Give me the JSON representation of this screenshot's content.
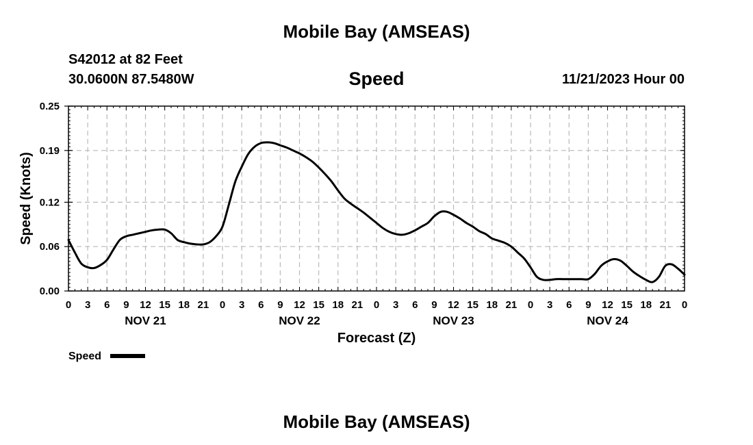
{
  "header": {
    "title": "Mobile Bay (AMSEAS)",
    "station": "S42012 at 82 Feet",
    "coordinates": "30.0600N  87.5480W",
    "datetime": "11/21/2023 Hour 00"
  },
  "footer": {
    "title": "Mobile Bay (AMSEAS)"
  },
  "chart_data": {
    "type": "line",
    "title": "Speed",
    "xlabel": "Forecast (Z)",
    "ylabel": "Speed (Knots)",
    "x_tick_labels": [
      "0",
      "3",
      "6",
      "9",
      "12",
      "15",
      "18",
      "21",
      "0",
      "3",
      "6",
      "9",
      "12",
      "15",
      "18",
      "21",
      "0",
      "3",
      "6",
      "9",
      "12",
      "15",
      "18",
      "21",
      "0",
      "3",
      "6",
      "9",
      "12",
      "15",
      "18",
      "21",
      "0"
    ],
    "x_day_labels": [
      "NOV 21",
      "NOV 22",
      "NOV 23",
      "NOV 24"
    ],
    "x_range_hours": [
      0,
      96
    ],
    "ylim": [
      0,
      0.25
    ],
    "y_ticks": [
      0.0,
      0.06,
      0.12,
      0.19,
      0.25
    ],
    "y_tick_labels": [
      "0.00",
      "0.06",
      "0.12",
      "0.19",
      "0.25"
    ],
    "grid": true,
    "legend": "bottom-left",
    "series": [
      {
        "name": "Speed",
        "color": "#000000",
        "x_hours": [
          0,
          1,
          2,
          3,
          4,
          5,
          6,
          7,
          8,
          9,
          10,
          11,
          12,
          13,
          14,
          15,
          16,
          17,
          18,
          19,
          20,
          21,
          22,
          23,
          24,
          25,
          26,
          27,
          28,
          29,
          30,
          31,
          32,
          33,
          34,
          35,
          36,
          37,
          38,
          39,
          40,
          41,
          42,
          43,
          44,
          45,
          46,
          47,
          48,
          49,
          50,
          51,
          52,
          53,
          54,
          55,
          56,
          57,
          58,
          59,
          60,
          61,
          62,
          63,
          64,
          65,
          66,
          67,
          68,
          69,
          70,
          71,
          72,
          73,
          74,
          75,
          76,
          77,
          78,
          79,
          80,
          81,
          82,
          83,
          84,
          85,
          86,
          87,
          88,
          89,
          90,
          91,
          92,
          93,
          94,
          95,
          96
        ],
        "values": [
          0.069,
          0.052,
          0.037,
          0.032,
          0.031,
          0.035,
          0.042,
          0.056,
          0.069,
          0.074,
          0.076,
          0.078,
          0.08,
          0.082,
          0.083,
          0.083,
          0.078,
          0.069,
          0.066,
          0.064,
          0.063,
          0.063,
          0.066,
          0.074,
          0.087,
          0.117,
          0.148,
          0.168,
          0.185,
          0.195,
          0.2,
          0.201,
          0.2,
          0.197,
          0.194,
          0.19,
          0.186,
          0.181,
          0.175,
          0.167,
          0.158,
          0.148,
          0.136,
          0.125,
          0.118,
          0.112,
          0.106,
          0.099,
          0.092,
          0.085,
          0.08,
          0.077,
          0.076,
          0.078,
          0.082,
          0.087,
          0.092,
          0.101,
          0.107,
          0.107,
          0.103,
          0.098,
          0.092,
          0.087,
          0.081,
          0.077,
          0.071,
          0.068,
          0.065,
          0.06,
          0.052,
          0.044,
          0.032,
          0.019,
          0.015,
          0.015,
          0.016,
          0.016,
          0.016,
          0.016,
          0.016,
          0.016,
          0.023,
          0.034,
          0.04,
          0.043,
          0.041,
          0.034,
          0.026,
          0.02,
          0.015,
          0.012,
          0.019,
          0.034,
          0.036,
          0.03,
          0.022
        ]
      }
    ]
  }
}
